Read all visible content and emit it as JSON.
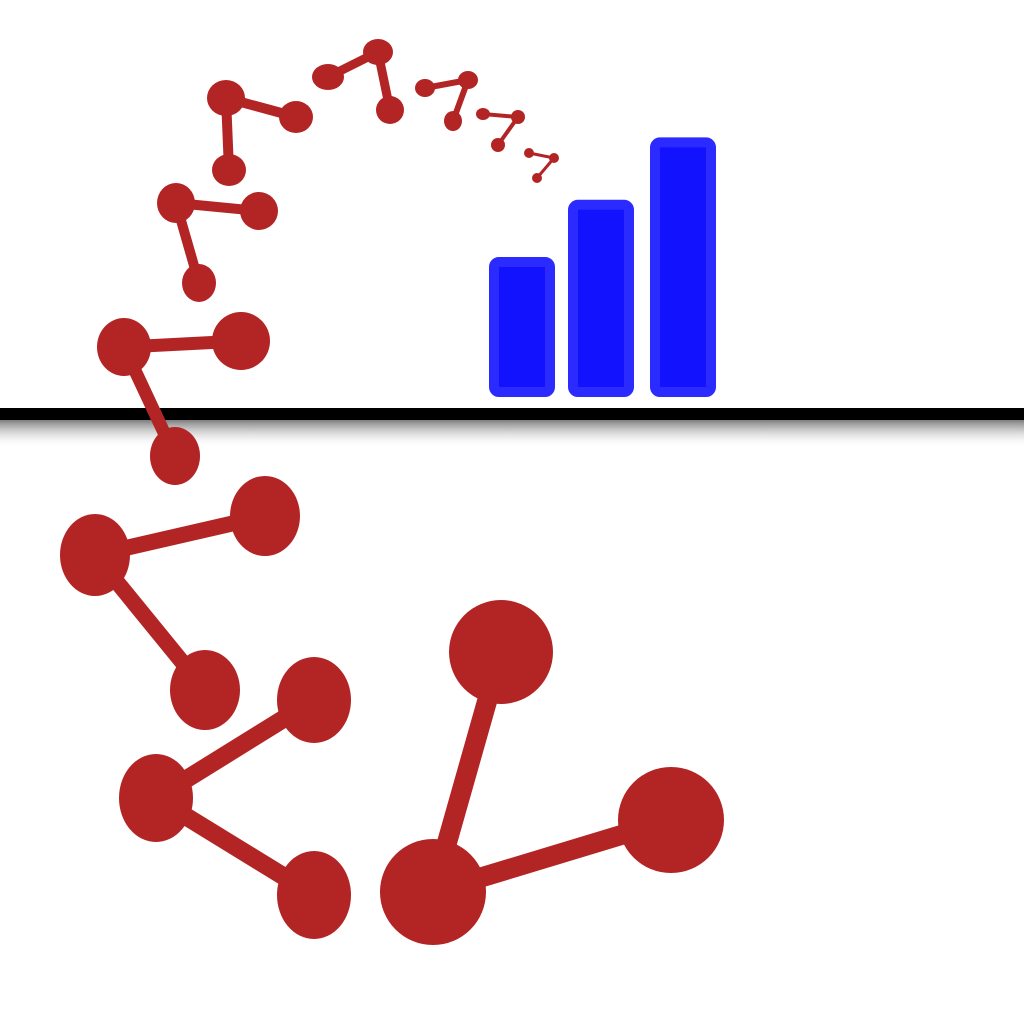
{
  "colors": {
    "background": "#ffffff",
    "molecule": "#b32425",
    "bar_fill": "#1212ff",
    "bar_outline": "#2b2bff",
    "horizon_line": "#000000",
    "horizon_shadow": "#9a9a9a"
  },
  "icons": {
    "molecule_chain": "molecule-chain-icon",
    "bar_chart": "bar-chart-icon",
    "horizon": "horizon-line"
  },
  "bar_chart": {
    "bar_levels": [
      0.5,
      0.72,
      0.96
    ]
  }
}
